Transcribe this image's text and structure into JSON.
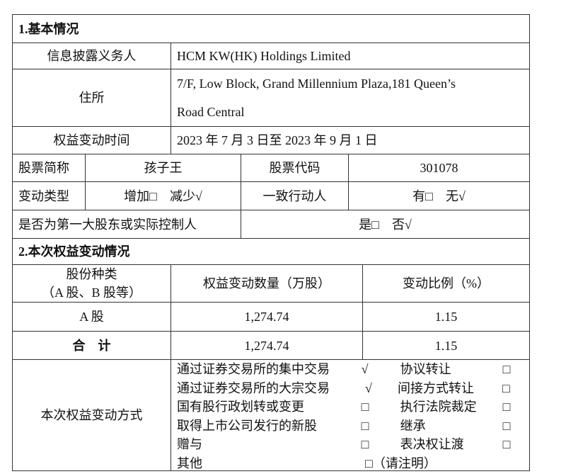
{
  "section1": {
    "title": "1.基本情况",
    "discloser_label": "信息披露义务人",
    "discloser_value": "HCM KW(HK) Holdings Limited",
    "address_label": "住所",
    "address_line1": "7/F, Low Block, Grand Millennium Plaza,181 Queen’s",
    "address_line2": "Road Central",
    "period_label": "权益变动时间",
    "period_value": "2023 年 7 月 3 日至 2023 年 9 月 1 日",
    "stock_name_label": "股票简称",
    "stock_name_value": "孩子王",
    "stock_code_label": "股票代码",
    "stock_code_value": "301078",
    "change_type_label": "变动类型",
    "change_type_value": "增加□　减少√",
    "concert_label": "一致行动人",
    "concert_value": "有□　无√",
    "controller_label": "是否为第一大股东或实际控制人",
    "controller_value": "是□　否√"
  },
  "section2": {
    "title": "2.本次权益变动情况",
    "headers": [
      "股份种类",
      "（A 股、B 股等）",
      "权益变动数量（万股）",
      "变动比例（%）"
    ],
    "rows": [
      {
        "type": "A 股",
        "qty": "1,274.74",
        "ratio": "1.15"
      },
      {
        "type": "合　计",
        "qty": "1,274.74",
        "ratio": "1.15"
      }
    ],
    "method_label": "本次权益变动方式",
    "methods": [
      [
        "通过证券交易所的集中交易",
        "√",
        "协议转让",
        "□"
      ],
      [
        "通过证券交易所的大宗交易",
        "√",
        "间接方式转让",
        "□"
      ],
      [
        "国有股行政划转或变更",
        "□",
        "执行法院裁定",
        "□"
      ],
      [
        "取得上市公司发行的新股",
        "□",
        "继承",
        "□"
      ],
      [
        "赠与",
        "□",
        "表决权让渡",
        "□"
      ],
      [
        "其他",
        "□（请注明）",
        "",
        ""
      ]
    ]
  }
}
